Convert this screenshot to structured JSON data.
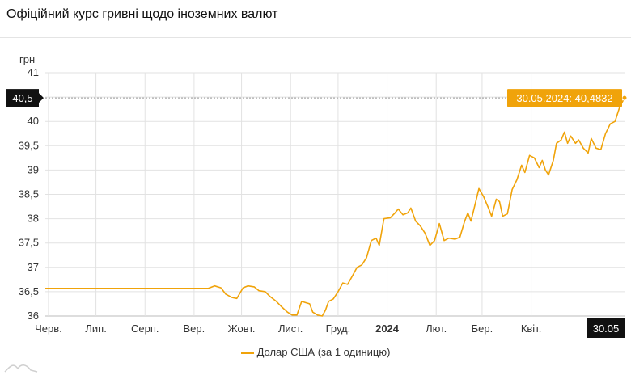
{
  "title": "Офіційний курс гривні щодо іноземних валют",
  "chart_data": {
    "type": "line",
    "ylabel": "грн",
    "ylim": [
      36,
      41
    ],
    "yticks": [
      36,
      36.5,
      37,
      37.5,
      38,
      38.5,
      39,
      39.5,
      40,
      40.5,
      41
    ],
    "ytick_labels": [
      "36",
      "36,5",
      "37",
      "37,5",
      "38",
      "38,5",
      "39",
      "39,5",
      "40",
      "",
      "41"
    ],
    "x_range": [
      "2023-05-30",
      "2024-05-30"
    ],
    "xticks": [
      {
        "date": "2023-06-01",
        "label": "Черв."
      },
      {
        "date": "2023-07-01",
        "label": "Лип."
      },
      {
        "date": "2023-08-01",
        "label": "Серп."
      },
      {
        "date": "2023-09-01",
        "label": "Вер."
      },
      {
        "date": "2023-10-01",
        "label": "Жовт."
      },
      {
        "date": "2023-11-01",
        "label": "Лист."
      },
      {
        "date": "2023-12-01",
        "label": "Груд."
      },
      {
        "date": "2024-01-01",
        "label": "2024",
        "bold": true
      },
      {
        "date": "2024-02-01",
        "label": "Лют."
      },
      {
        "date": "2024-03-01",
        "label": "Бер."
      },
      {
        "date": "2024-04-01",
        "label": "Квіт."
      }
    ],
    "crosshair": {
      "y_label": "40,5",
      "x_label": "30.05"
    },
    "tooltip": "30.05.2024: 40,4832",
    "series": [
      {
        "name": "Долар США (за 1 одиницю)",
        "color": "#f0a30a",
        "points": [
          [
            "2023-05-30",
            36.5686
          ],
          [
            "2023-07-15",
            36.5686
          ],
          [
            "2023-09-02",
            36.5686
          ],
          [
            "2023-09-10",
            36.5686
          ],
          [
            "2023-09-14",
            36.62
          ],
          [
            "2023-09-18",
            36.58
          ],
          [
            "2023-09-21",
            36.45
          ],
          [
            "2023-09-25",
            36.38
          ],
          [
            "2023-09-28",
            36.36
          ],
          [
            "2023-10-02",
            36.58
          ],
          [
            "2023-10-05",
            36.62
          ],
          [
            "2023-10-09",
            36.6
          ],
          [
            "2023-10-12",
            36.52
          ],
          [
            "2023-10-16",
            36.5
          ],
          [
            "2023-10-19",
            36.4
          ],
          [
            "2023-10-23",
            36.3
          ],
          [
            "2023-10-26",
            36.2
          ],
          [
            "2023-10-30",
            36.08
          ],
          [
            "2023-11-02",
            36.02
          ],
          [
            "2023-11-05",
            36.02
          ],
          [
            "2023-11-08",
            36.3
          ],
          [
            "2023-11-10",
            36.28
          ],
          [
            "2023-11-13",
            36.25
          ],
          [
            "2023-11-15",
            36.08
          ],
          [
            "2023-11-18",
            36.02
          ],
          [
            "2023-11-21",
            36.0
          ],
          [
            "2023-11-23",
            36.12
          ],
          [
            "2023-11-25",
            36.3
          ],
          [
            "2023-11-28",
            36.35
          ],
          [
            "2023-12-01",
            36.5
          ],
          [
            "2023-12-04",
            36.68
          ],
          [
            "2023-12-07",
            36.65
          ],
          [
            "2023-12-10",
            36.82
          ],
          [
            "2023-12-13",
            37.0
          ],
          [
            "2023-12-16",
            37.05
          ],
          [
            "2023-12-19",
            37.2
          ],
          [
            "2023-12-22",
            37.55
          ],
          [
            "2023-12-25",
            37.6
          ],
          [
            "2023-12-27",
            37.45
          ],
          [
            "2023-12-30",
            38.0
          ],
          [
            "2024-01-03",
            38.02
          ],
          [
            "2024-01-06",
            38.12
          ],
          [
            "2024-01-08",
            38.2
          ],
          [
            "2024-01-11",
            38.08
          ],
          [
            "2024-01-14",
            38.12
          ],
          [
            "2024-01-16",
            38.22
          ],
          [
            "2024-01-19",
            37.95
          ],
          [
            "2024-01-22",
            37.85
          ],
          [
            "2024-01-25",
            37.7
          ],
          [
            "2024-01-28",
            37.45
          ],
          [
            "2024-01-31",
            37.55
          ],
          [
            "2024-02-03",
            37.9
          ],
          [
            "2024-02-06",
            37.55
          ],
          [
            "2024-02-09",
            37.6
          ],
          [
            "2024-02-13",
            37.58
          ],
          [
            "2024-02-16",
            37.62
          ],
          [
            "2024-02-19",
            37.95
          ],
          [
            "2024-02-21",
            38.12
          ],
          [
            "2024-02-23",
            37.95
          ],
          [
            "2024-02-26",
            38.35
          ],
          [
            "2024-02-28",
            38.62
          ],
          [
            "2024-03-02",
            38.45
          ],
          [
            "2024-03-05",
            38.22
          ],
          [
            "2024-03-07",
            38.05
          ],
          [
            "2024-03-10",
            38.4
          ],
          [
            "2024-03-12",
            38.35
          ],
          [
            "2024-03-14",
            38.05
          ],
          [
            "2024-03-17",
            38.1
          ],
          [
            "2024-03-20",
            38.6
          ],
          [
            "2024-03-23",
            38.8
          ],
          [
            "2024-03-26",
            39.1
          ],
          [
            "2024-03-28",
            38.95
          ],
          [
            "2024-03-31",
            39.3
          ],
          [
            "2024-04-03",
            39.25
          ],
          [
            "2024-04-06",
            39.05
          ],
          [
            "2024-04-08",
            39.2
          ],
          [
            "2024-04-10",
            39.0
          ],
          [
            "2024-04-12",
            38.9
          ],
          [
            "2024-04-15",
            39.2
          ],
          [
            "2024-04-17",
            39.55
          ],
          [
            "2024-04-20",
            39.62
          ],
          [
            "2024-04-22",
            39.78
          ],
          [
            "2024-04-24",
            39.55
          ],
          [
            "2024-04-26",
            39.7
          ],
          [
            "2024-04-29",
            39.55
          ],
          [
            "2024-05-01",
            39.62
          ],
          [
            "2024-05-04",
            39.45
          ],
          [
            "2024-05-07",
            39.35
          ],
          [
            "2024-05-09",
            39.65
          ],
          [
            "2024-05-12",
            39.45
          ],
          [
            "2024-05-15",
            39.42
          ],
          [
            "2024-05-18",
            39.75
          ],
          [
            "2024-05-21",
            39.95
          ],
          [
            "2024-05-24",
            40.0
          ],
          [
            "2024-05-27",
            40.3
          ],
          [
            "2024-05-30",
            40.4832
          ]
        ]
      }
    ]
  }
}
